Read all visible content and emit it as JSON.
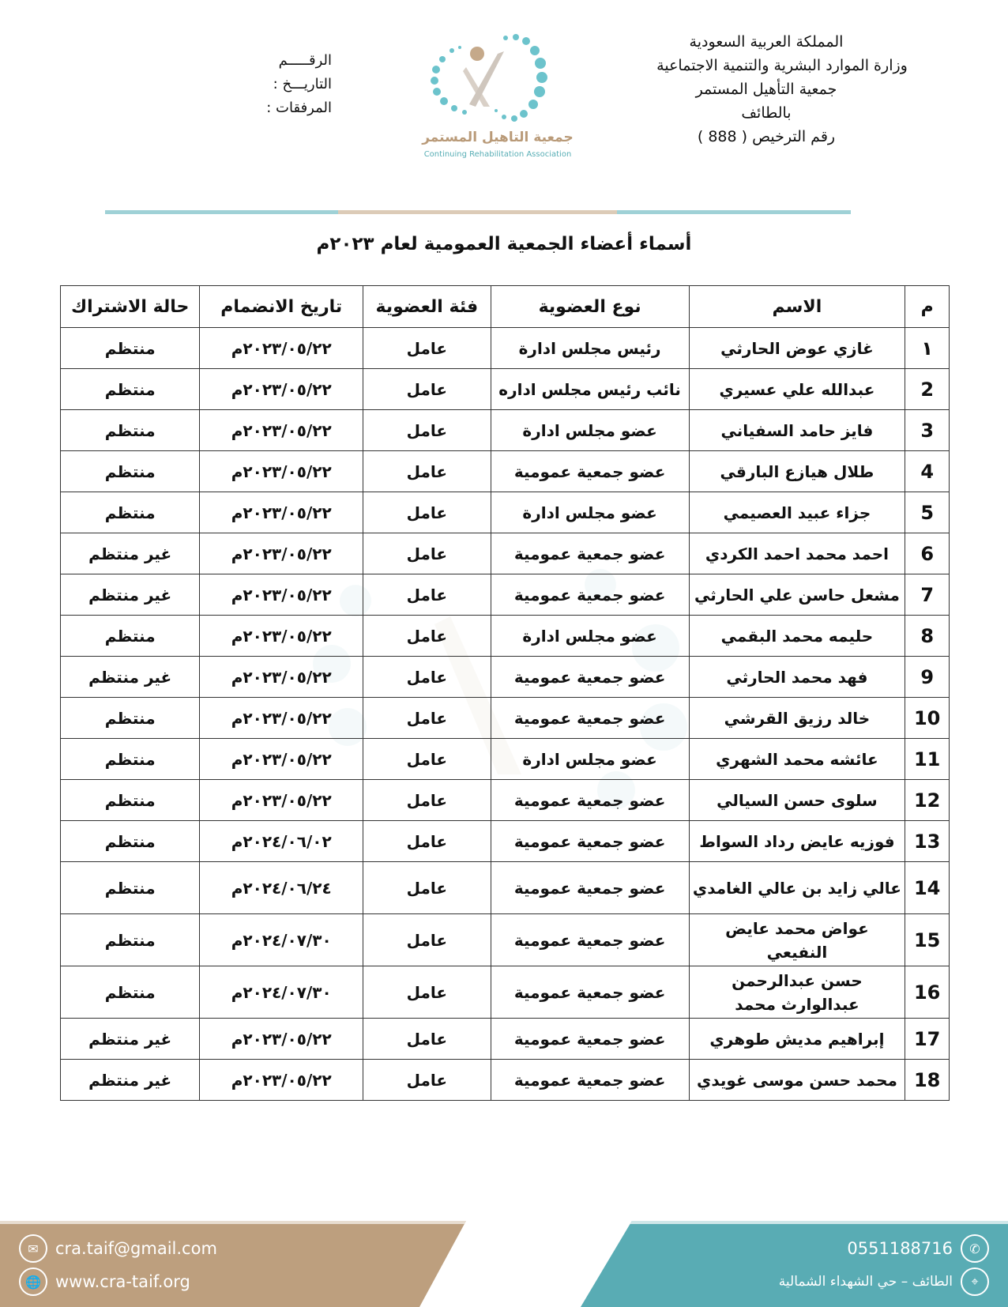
{
  "header": {
    "org_lines": [
      "المملكة العربية السعودية",
      "وزارة الموارد البشرية والتنمية الاجتماعية",
      "جمعية التأهيل المستمر",
      "بالطائف",
      "رقم الترخيص ( 888 )"
    ],
    "ref_lines": [
      "الرقـــــم",
      "التاريـــخ :",
      "المرفقات :"
    ],
    "logo": {
      "ar": "جمعية التاهيل المستمر",
      "en": "Continuing Rehabilitation Association"
    }
  },
  "title": "أسماء أعضاء الجمعية العمومية لعام ٢٠٢٣م",
  "table": {
    "headers": [
      "م",
      "الاسم",
      "نوع العضوية",
      "فئة العضوية",
      "تاريخ الانضمام",
      "حالة الاشتراك"
    ],
    "rows": [
      [
        "١",
        "غازي عوض الحارثي",
        "رئيس مجلس ادارة",
        "عامل",
        "٢٠٢٣/٠٥/٢٢م",
        "منتظم"
      ],
      [
        "2",
        "عبدالله علي عسيري",
        "نائب رئيس مجلس اداره",
        "عامل",
        "٢٠٢٣/٠٥/٢٢م",
        "منتظم"
      ],
      [
        "3",
        "فايز حامد السفياني",
        "عضو مجلس ادارة",
        "عامل",
        "٢٠٢٣/٠٥/٢٢م",
        "منتظم"
      ],
      [
        "4",
        "طلال هيازع البارقي",
        "عضو جمعية عمومية",
        "عامل",
        "٢٠٢٣/٠٥/٢٢م",
        "منتظم"
      ],
      [
        "5",
        "جزاء عبيد العصيمي",
        "عضو مجلس ادارة",
        "عامل",
        "٢٠٢٣/٠٥/٢٢م",
        "منتظم"
      ],
      [
        "6",
        "احمد محمد احمد الكردي",
        "عضو جمعية عمومية",
        "عامل",
        "٢٠٢٣/٠٥/٢٢م",
        "غير منتظم"
      ],
      [
        "7",
        "مشعل حاسن علي الحارثي",
        "عضو جمعية عمومية",
        "عامل",
        "٢٠٢٣/٠٥/٢٢م",
        "غير منتظم"
      ],
      [
        "8",
        "حليمه محمد البقمي",
        "عضو مجلس ادارة",
        "عامل",
        "٢٠٢٣/٠٥/٢٢م",
        "منتظم"
      ],
      [
        "9",
        "فهد محمد الحارثي",
        "عضو جمعية عمومية",
        "عامل",
        "٢٠٢٣/٠٥/٢٢م",
        "غير منتظم"
      ],
      [
        "10",
        "خالد رزيق القرشي",
        "عضو جمعية عمومية",
        "عامل",
        "٢٠٢٣/٠٥/٢٢م",
        "منتظم"
      ],
      [
        "11",
        "عائشه محمد الشهري",
        "عضو مجلس ادارة",
        "عامل",
        "٢٠٢٣/٠٥/٢٢م",
        "منتظم"
      ],
      [
        "12",
        "سلوى حسن السيالي",
        "عضو جمعية عمومية",
        "عامل",
        "٢٠٢٣/٠٥/٢٢م",
        "منتظم"
      ],
      [
        "13",
        "فوزيه عايض رداد السواط",
        "عضو جمعية عمومية",
        "عامل",
        "٢٠٢٤/٠٦/٠٢م",
        "منتظم"
      ],
      [
        "14",
        "عالي زايد بن عالي الغامدي",
        "عضو جمعية عمومية",
        "عامل",
        "٢٠٢٤/٠٦/٢٤م",
        "منتظم"
      ],
      [
        "15",
        "عواض محمد عايض النفيعي",
        "عضو جمعية عمومية",
        "عامل",
        "٢٠٢٤/٠٧/٣٠م",
        "منتظم"
      ],
      [
        "16",
        "حسن عبدالرحمن عبدالوارث محمد",
        "عضو جمعية عمومية",
        "عامل",
        "٢٠٢٤/٠٧/٣٠م",
        "منتظم"
      ],
      [
        "17",
        "إبراهيم مديش طوهري",
        "عضو جمعية عمومية",
        "عامل",
        "٢٠٢٣/٠٥/٢٢م",
        "غير منتظم"
      ],
      [
        "18",
        "محمد حسن موسى غويدي",
        "عضو جمعية عمومية",
        "عامل",
        "٢٠٢٣/٠٥/٢٢م",
        "غير منتظم"
      ]
    ]
  },
  "footer": {
    "email": "cra.taif@gmail.com",
    "website": "www.cra-taif.org",
    "phone": "0551188716",
    "address": "الطائف – حي الشهداء الشمالية",
    "icons": [
      "mail-icon",
      "globe-icon",
      "phone-icon",
      "location-icon"
    ]
  },
  "colors": {
    "teal": "#59acb4",
    "tan": "#bd9f7e"
  }
}
